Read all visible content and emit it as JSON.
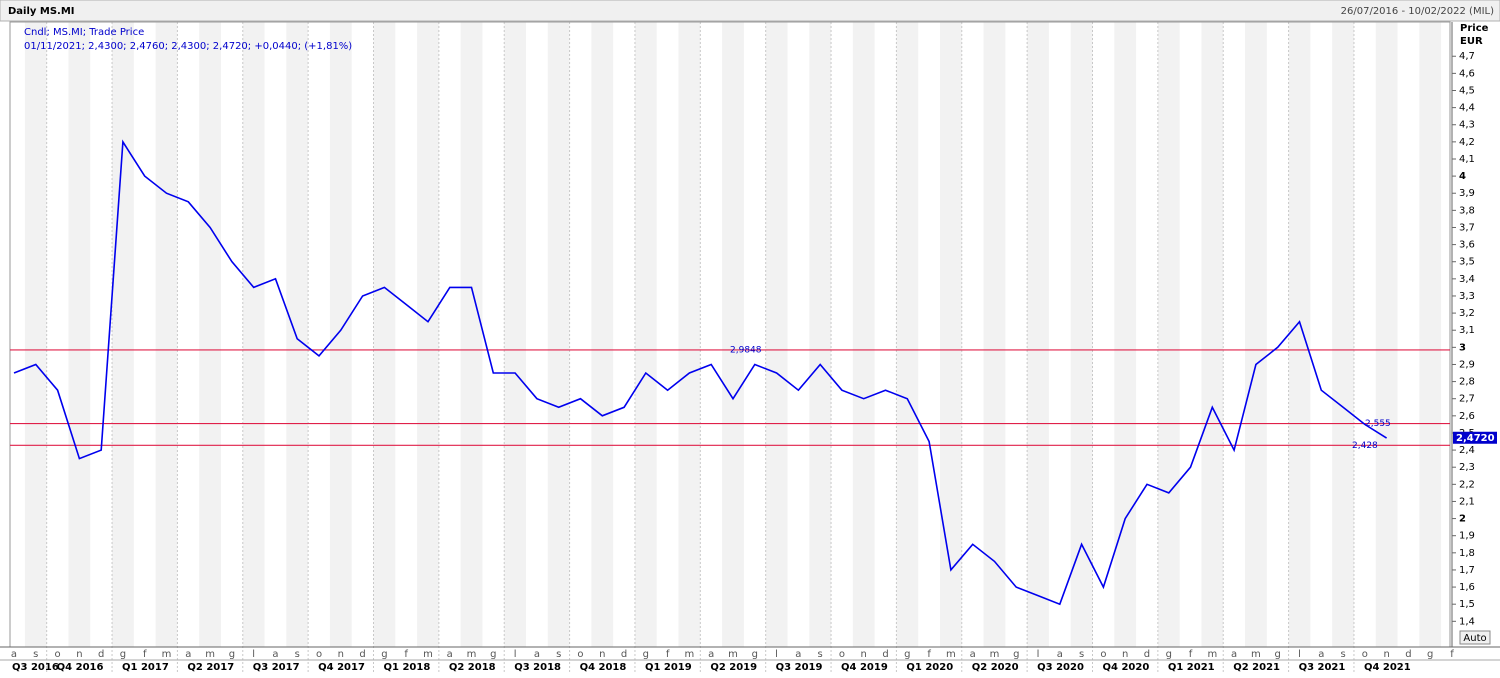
{
  "chart_data": {
    "type": "line",
    "title": "Daily MS.MI",
    "date_range": "26/07/2016 - 10/02/2022 (MIL)",
    "subtitle": "Cndl; MS.MI; Trade Price",
    "info": "01/11/2021; 2,4300; 2,4760; 2,4300; 2,4720; +0,0440; (+1,81%)",
    "y_axis_label": "Price",
    "y_axis_unit": "EUR",
    "scale_mode": "Auto",
    "categories": [
      "a",
      "s",
      "o",
      "n",
      "d",
      "g",
      "f",
      "m",
      "a",
      "m",
      "g",
      "l",
      "a",
      "s",
      "o",
      "n",
      "d",
      "g",
      "f",
      "m",
      "a",
      "m",
      "g",
      "l",
      "a",
      "s",
      "o",
      "n",
      "d",
      "g",
      "f",
      "m",
      "a",
      "m",
      "g",
      "l",
      "a",
      "s",
      "o",
      "n",
      "d",
      "g",
      "f",
      "m",
      "a",
      "m",
      "g",
      "l",
      "a",
      "s",
      "o",
      "n",
      "d",
      "g",
      "f",
      "m",
      "a",
      "m",
      "g",
      "l",
      "a",
      "s",
      "o",
      "n",
      "d",
      "g",
      "f"
    ],
    "quarters": [
      "Q3 2016",
      "Q4 2016",
      "Q1 2017",
      "Q2 2017",
      "Q3 2017",
      "Q4 2017",
      "Q1 2018",
      "Q2 2018",
      "Q3 2018",
      "Q4 2018",
      "Q1 2019",
      "Q2 2019",
      "Q3 2019",
      "Q4 2019",
      "Q1 2020",
      "Q2 2020",
      "Q3 2020",
      "Q4 2020",
      "Q1 2021",
      "Q2 2021",
      "Q3 2021",
      "Q4 2021"
    ],
    "series": [
      {
        "name": "MS.MI",
        "color": "#0000ee",
        "values": [
          2.85,
          2.9,
          2.75,
          2.35,
          2.4,
          4.2,
          4.0,
          3.9,
          3.85,
          3.7,
          3.5,
          3.35,
          3.4,
          3.05,
          2.95,
          3.1,
          3.3,
          3.35,
          3.25,
          3.15,
          3.35,
          3.35,
          2.85,
          2.85,
          2.7,
          2.65,
          2.7,
          2.6,
          2.65,
          2.85,
          2.75,
          2.85,
          2.9,
          2.7,
          2.9,
          2.85,
          2.75,
          2.9,
          2.75,
          2.7,
          2.75,
          2.7,
          2.45,
          1.7,
          1.85,
          1.75,
          1.6,
          1.55,
          1.5,
          1.85,
          1.6,
          2.0,
          2.2,
          2.15,
          2.3,
          2.65,
          2.4,
          2.9,
          3.0,
          3.15,
          2.75,
          2.65,
          2.55,
          2.47,
          null,
          null,
          null
        ]
      }
    ],
    "hlines": [
      {
        "value": 2.9848,
        "label": "2,9848"
      },
      {
        "value": 2.555,
        "label": "2,555"
      },
      {
        "value": 2.428,
        "label": "2,428"
      }
    ],
    "hline_color": "#e0204a",
    "last_price": {
      "value": 2.472,
      "label": "2,4720"
    },
    "ylim": [
      1.25,
      4.9
    ],
    "yticks": [
      {
        "value": 1.4,
        "label": "1,4"
      },
      {
        "value": 1.5,
        "label": "1,5"
      },
      {
        "value": 1.6,
        "label": "1,6"
      },
      {
        "value": 1.7,
        "label": "1,7"
      },
      {
        "value": 1.8,
        "label": "1,8"
      },
      {
        "value": 1.9,
        "label": "1,9"
      },
      2,
      {
        "value": 2.1,
        "label": "2,1"
      },
      {
        "value": 2.2,
        "label": "2,2"
      },
      {
        "value": 2.3,
        "label": "2,3"
      },
      {
        "value": 2.4,
        "label": "2,4"
      },
      {
        "value": 2.5,
        "label": "2,5"
      },
      {
        "value": 2.6,
        "label": "2,6"
      },
      {
        "value": 2.7,
        "label": "2,7"
      },
      {
        "value": 2.8,
        "label": "2,8"
      },
      {
        "value": 2.9,
        "label": "2,9"
      },
      3,
      {
        "value": 3.1,
        "label": "3,1"
      },
      {
        "value": 3.2,
        "label": "3,2"
      },
      {
        "value": 3.3,
        "label": "3,3"
      },
      {
        "value": 3.4,
        "label": "3,4"
      },
      {
        "value": 3.5,
        "label": "3,5"
      },
      {
        "value": 3.6,
        "label": "3,6"
      },
      {
        "value": 3.7,
        "label": "3,7"
      },
      {
        "value": 3.8,
        "label": "3,8"
      },
      {
        "value": 3.9,
        "label": "3,9"
      },
      4,
      {
        "value": 4.1,
        "label": "4,1"
      },
      {
        "value": 4.2,
        "label": "4,2"
      },
      {
        "value": 4.3,
        "label": "4,3"
      },
      {
        "value": 4.4,
        "label": "4,4"
      },
      {
        "value": 4.5,
        "label": "4,5"
      },
      {
        "value": 4.6,
        "label": "4,6"
      },
      {
        "value": 4.7,
        "label": "4,7"
      }
    ]
  }
}
